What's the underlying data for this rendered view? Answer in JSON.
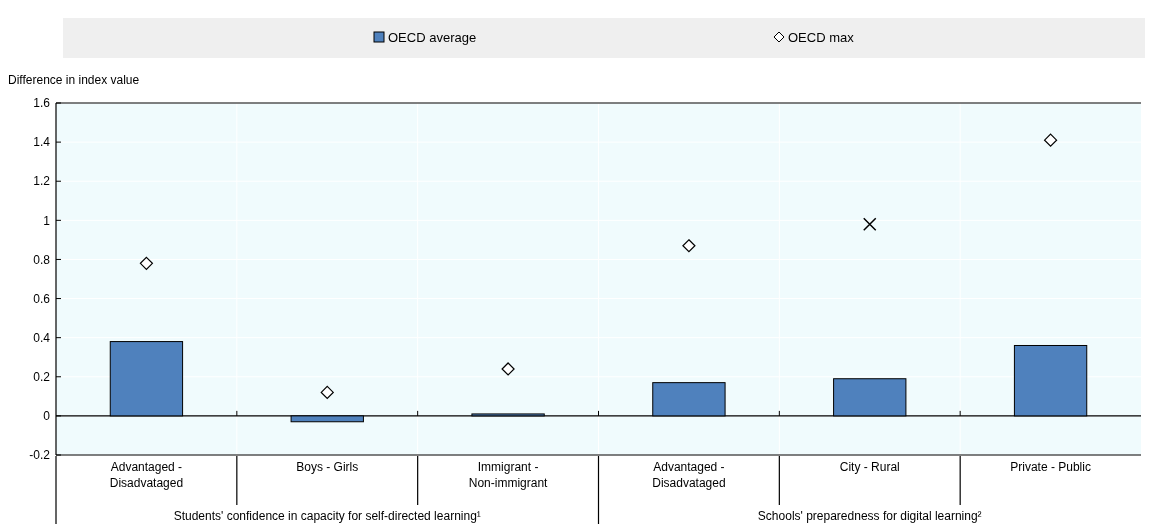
{
  "chart_data": {
    "type": "bar",
    "ylabel": "Difference in index value",
    "categories": [
      "Advantaged - Disadvataged",
      "Boys - Girls",
      "Immigrant - Non-immigrant",
      "Advantaged - Disadvataged",
      "City - Rural",
      "Private - Public"
    ],
    "series": [
      {
        "name": "OECD average",
        "color": "#4f81bd",
        "values": [
          0.38,
          -0.03,
          0.01,
          0.17,
          0.19,
          0.36
        ]
      },
      {
        "name": "OECD max",
        "type": "scatter",
        "marker": "diamond",
        "color": "#000000",
        "values": [
          0.78,
          0.12,
          0.24,
          0.87,
          null,
          1.41
        ]
      },
      {
        "type": "scatter",
        "marker": "cross",
        "color": "#000000",
        "values": [
          null,
          null,
          null,
          null,
          0.98,
          null
        ]
      }
    ],
    "annotations": [
      "Students' confidence in capacity for self-directed learning¹",
      "Schools' preparedness for digital learning²"
    ],
    "ylim": [
      -0.2,
      1.6
    ],
    "yticks": [
      -0.2,
      0,
      0.2,
      0.4,
      0.6,
      0.8,
      1,
      1.2,
      1.4,
      1.6
    ],
    "grid": true,
    "legend": "top"
  }
}
